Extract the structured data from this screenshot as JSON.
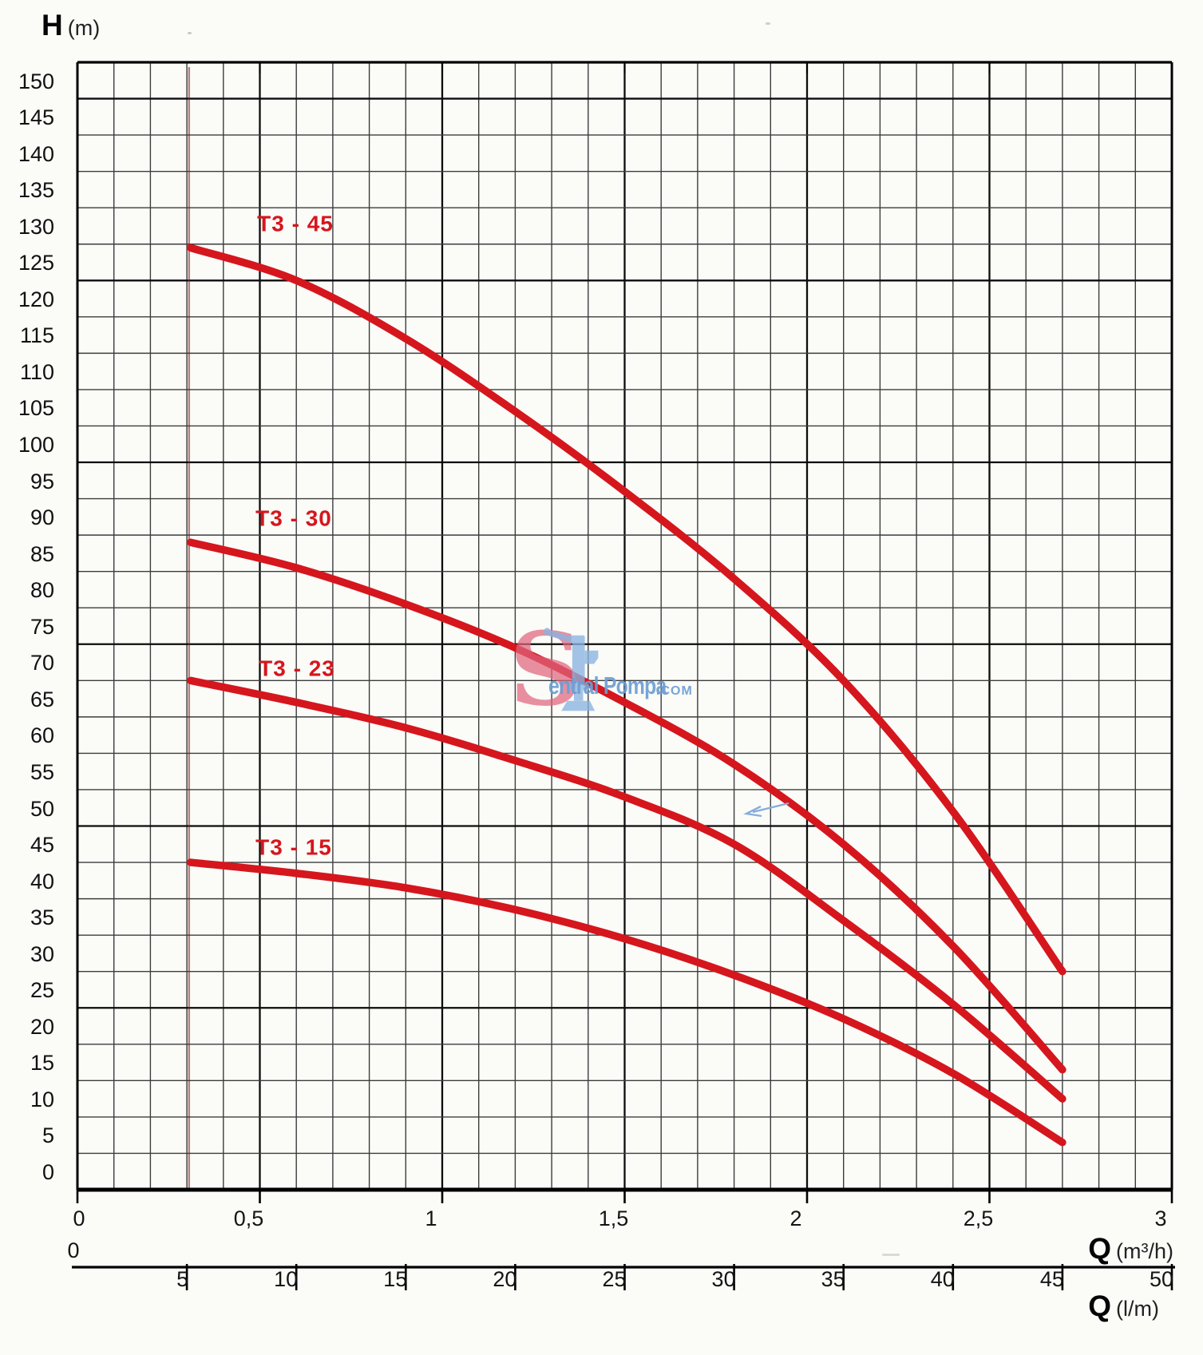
{
  "y_axis_title": {
    "bold": "H",
    "unit": "(m)"
  },
  "x_axis_title_primary": {
    "bold": "Q",
    "unit": "(m³/h)"
  },
  "x_axis_title_secondary": {
    "bold": "Q",
    "unit": "(l/m)"
  },
  "watermark": {
    "initial": "S",
    "text": "entral Pompa",
    "suffix": ".COM",
    "initial_color": "#e0667e",
    "text_color": "#6d9ed4",
    "pump_icon_color": "#8ab4e2"
  },
  "chart_data": {
    "type": "line",
    "title": "",
    "grid": true,
    "curve_color": "#d5161d",
    "x_axis": {
      "label": "Q (m³/h)",
      "range": [
        0,
        3
      ],
      "minor_step": 0.1,
      "tick_values": [
        0,
        0.5,
        1,
        1.5,
        2,
        2.5,
        3
      ],
      "tick_labels": [
        "0",
        "0,5",
        "1",
        "1,5",
        "2",
        "2,5",
        "3"
      ]
    },
    "x_axis_secondary": {
      "label": "Q (l/m)",
      "range": [
        0,
        50
      ],
      "zero_label": "0",
      "tick_values": [
        5,
        10,
        15,
        20,
        25,
        30,
        35,
        40,
        45,
        50
      ],
      "tick_labels": [
        "5",
        "10",
        "15",
        "20",
        "25",
        "30",
        "35",
        "40",
        "45",
        "50"
      ]
    },
    "y_axis": {
      "label": "H (m)",
      "range": [
        0,
        155
      ],
      "minor_step": 5,
      "major_step": 25,
      "tick_values": [
        150,
        145,
        140,
        135,
        130,
        125,
        120,
        115,
        110,
        105,
        100,
        95,
        90,
        85,
        80,
        75,
        70,
        65,
        60,
        55,
        50,
        45,
        40,
        35,
        30,
        25,
        20,
        15,
        10,
        5,
        0
      ],
      "tick_labels": [
        "150",
        "145",
        "140",
        "135",
        "130",
        "125",
        "120",
        "115",
        "110",
        "105",
        "100",
        "95",
        "90",
        "85",
        "80",
        "75",
        "70",
        "65",
        "60",
        "55",
        "50",
        "45",
        "40",
        "35",
        "30",
        "25",
        "20",
        "15",
        "10",
        "5",
        "0"
      ]
    },
    "series": [
      {
        "name": "T3 - 45",
        "color": "#d5161d",
        "points": [
          [
            0.31,
            129.5
          ],
          [
            0.6,
            125
          ],
          [
            0.9,
            117
          ],
          [
            1.2,
            107
          ],
          [
            1.5,
            96
          ],
          [
            1.8,
            84
          ],
          [
            2.1,
            70
          ],
          [
            2.4,
            52
          ],
          [
            2.7,
            30
          ]
        ]
      },
      {
        "name": "T3 - 30",
        "color": "#d5161d",
        "points": [
          [
            0.31,
            89
          ],
          [
            0.6,
            85.5
          ],
          [
            0.9,
            80.5
          ],
          [
            1.2,
            74.5
          ],
          [
            1.5,
            67
          ],
          [
            1.8,
            58.5
          ],
          [
            2.1,
            47.5
          ],
          [
            2.4,
            33.5
          ],
          [
            2.7,
            16.5
          ]
        ]
      },
      {
        "name": "T3 - 23",
        "color": "#d5161d",
        "points": [
          [
            0.31,
            70
          ],
          [
            0.6,
            67
          ],
          [
            0.9,
            63.5
          ],
          [
            1.2,
            59
          ],
          [
            1.5,
            54
          ],
          [
            1.8,
            47.5
          ],
          [
            2.1,
            37
          ],
          [
            2.4,
            25.5
          ],
          [
            2.7,
            12.5
          ]
        ]
      },
      {
        "name": "T3 - 15",
        "color": "#d5161d",
        "points": [
          [
            0.31,
            45
          ],
          [
            0.6,
            43.5
          ],
          [
            0.9,
            41.5
          ],
          [
            1.2,
            38.5
          ],
          [
            1.5,
            34.5
          ],
          [
            1.8,
            29.5
          ],
          [
            2.1,
            23.5
          ],
          [
            2.4,
            16
          ],
          [
            2.7,
            6.5
          ]
        ]
      }
    ]
  }
}
